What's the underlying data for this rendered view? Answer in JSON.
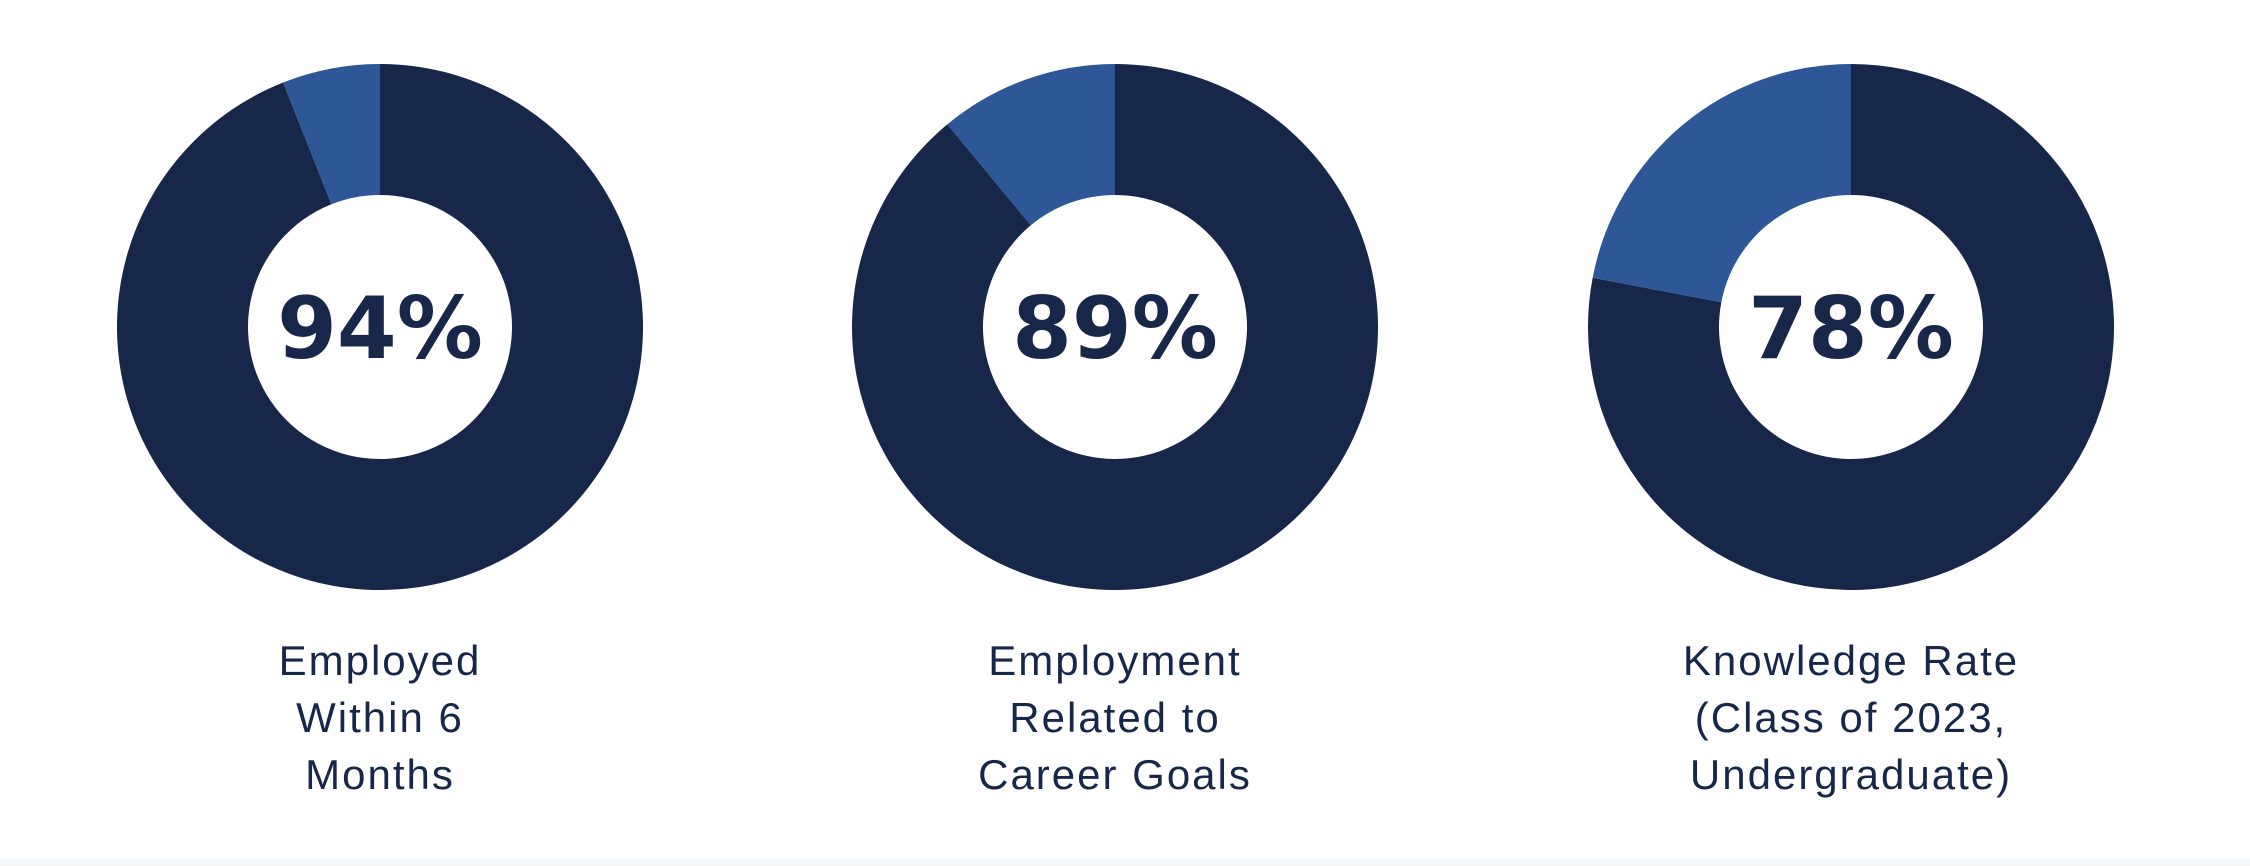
{
  "colors": {
    "primary": "#172749",
    "secondary": "#2e5797",
    "center": "#ffffff"
  },
  "chart_data": [
    {
      "type": "pie",
      "donut": true,
      "center_label": "94%",
      "values": [
        94,
        6
      ],
      "label_lines": [
        "Employed",
        "Within 6",
        "Months"
      ]
    },
    {
      "type": "pie",
      "donut": true,
      "center_label": "89%",
      "values": [
        89,
        11
      ],
      "label_lines": [
        "Employment",
        "Related to",
        "Career Goals"
      ]
    },
    {
      "type": "pie",
      "donut": true,
      "center_label": "78%",
      "values": [
        78,
        22
      ],
      "label_lines": [
        "Knowledge Rate",
        "(Class of 2023,",
        "Undergraduate)"
      ]
    }
  ]
}
